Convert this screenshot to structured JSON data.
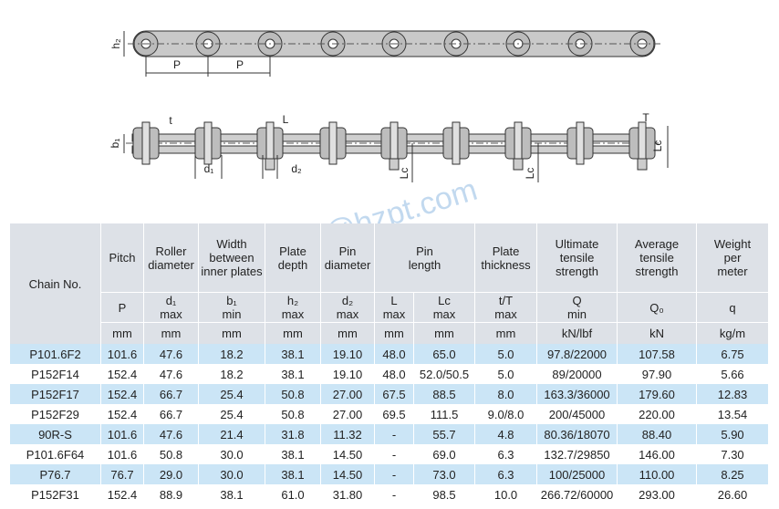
{
  "drawing": {
    "labels": [
      "h₂",
      "P",
      "P",
      "b₁",
      "t",
      "L",
      "d₁",
      "d₂",
      "Lc",
      "Lc",
      "T",
      "Lc"
    ]
  },
  "watermark": "hzpt@hzpt.com",
  "table": {
    "header_names": [
      [
        "Chain No."
      ],
      [
        "Pitch"
      ],
      [
        "Roller",
        "diameter"
      ],
      [
        "Width",
        "between",
        "inner plates"
      ],
      [
        "Plate",
        "depth"
      ],
      [
        "Pin",
        "diameter"
      ],
      [
        "Pin",
        "length"
      ],
      [
        "Plate",
        "thickness"
      ],
      [
        "Ultimate",
        "tensile",
        "strength"
      ],
      [
        "Average",
        "tensile",
        "strength"
      ],
      [
        "Weight",
        "per",
        "meter"
      ]
    ],
    "symbols": [
      [
        "P"
      ],
      [
        "d₁",
        "max"
      ],
      [
        "b₁",
        "min"
      ],
      [
        "h₂",
        "max"
      ],
      [
        "d₂",
        "max"
      ],
      [
        "L",
        "max"
      ],
      [
        "Lc",
        "max"
      ],
      [
        "t/T",
        "max"
      ],
      [
        "Q",
        "min"
      ],
      [
        "Q₀"
      ],
      [
        "q"
      ]
    ],
    "units": [
      "mm",
      "mm",
      "mm",
      "mm",
      "mm",
      "mm",
      "mm",
      "mm",
      "kN/lbf",
      "kN",
      "kg/m"
    ],
    "rows": [
      [
        "P101.6F2",
        "101.6",
        "47.6",
        "18.2",
        "38.1",
        "19.10",
        "48.0",
        "65.0",
        "5.0",
        "97.8/22000",
        "107.58",
        "6.75"
      ],
      [
        "P152F14",
        "152.4",
        "47.6",
        "18.2",
        "38.1",
        "19.10",
        "48.0",
        "52.0/50.5",
        "5.0",
        "89/20000",
        "97.90",
        "5.66"
      ],
      [
        "P152F17",
        "152.4",
        "66.7",
        "25.4",
        "50.8",
        "27.00",
        "67.5",
        "88.5",
        "8.0",
        "163.3/36000",
        "179.60",
        "12.83"
      ],
      [
        "P152F29",
        "152.4",
        "66.7",
        "25.4",
        "50.8",
        "27.00",
        "69.5",
        "111.5",
        "9.0/8.0",
        "200/45000",
        "220.00",
        "13.54"
      ],
      [
        "90R-S",
        "101.6",
        "47.6",
        "21.4",
        "31.8",
        "11.32",
        "-",
        "55.7",
        "4.8",
        "80.36/18070",
        "88.40",
        "5.90"
      ],
      [
        "P101.6F64",
        "101.6",
        "50.8",
        "30.0",
        "38.1",
        "14.50",
        "-",
        "69.0",
        "6.3",
        "132.7/29850",
        "146.00",
        "7.30"
      ],
      [
        "P76.7",
        "76.7",
        "29.0",
        "30.0",
        "38.1",
        "14.50",
        "-",
        "73.0",
        "6.3",
        "100/25000",
        "110.00",
        "8.25"
      ],
      [
        "P152F31",
        "152.4",
        "88.9",
        "38.1",
        "61.0",
        "31.80",
        "-",
        "98.5",
        "10.0",
        "266.72/60000",
        "293.00",
        "26.60"
      ]
    ]
  }
}
